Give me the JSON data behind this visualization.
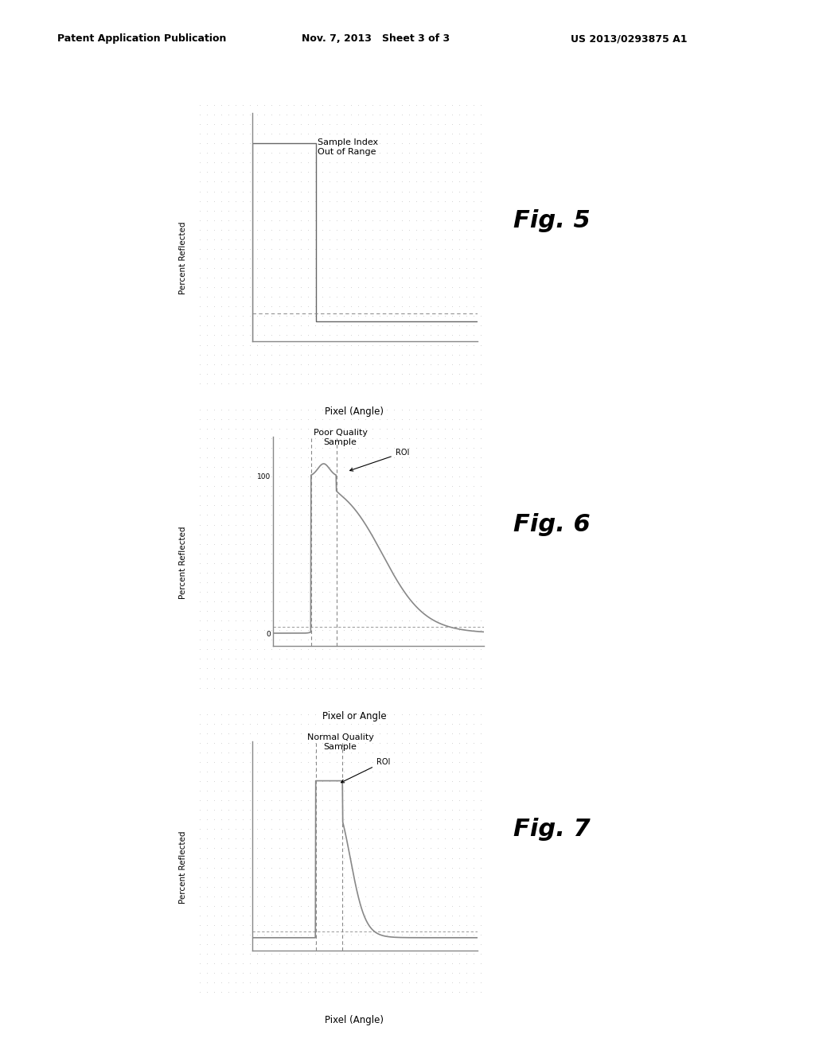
{
  "bg_color": "#ffffff",
  "panel_bg": "#cccccc",
  "header_left": "Patent Application Publication",
  "header_mid": "Nov. 7, 2013   Sheet 3 of 3",
  "header_right": "US 2013/0293875 A1",
  "fig5": {
    "label": "Fig. 5",
    "title": "Sample Index\nOut of Range",
    "ylabel": "Percent Reflected",
    "xlabel": "Pixel (Angle)"
  },
  "fig6": {
    "label": "Fig. 6",
    "title": "Poor Quality\nSample",
    "ylabel": "Percent Reflected",
    "xlabel": "Pixel or Angle",
    "ytick_0": "0",
    "ytick_100": "100",
    "roi_label": "ROI"
  },
  "fig7": {
    "label": "Fig. 7",
    "title": "Normal Quality\nSample",
    "ylabel": "Percent Reflected",
    "xlabel": "Pixel (Angle)",
    "roi_label": "ROI"
  }
}
